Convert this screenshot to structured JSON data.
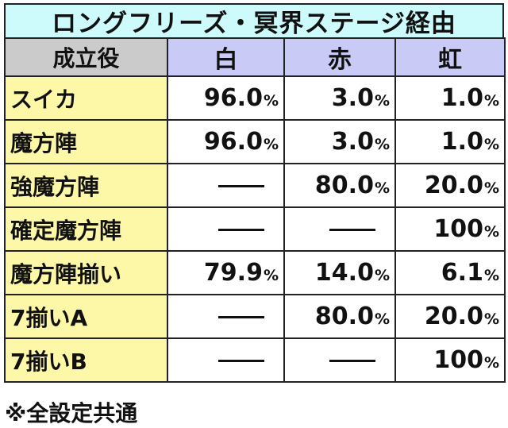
{
  "title": "ロングフリーズ・冥界ステージ経由",
  "headers": {
    "role": "成立役",
    "white": "白",
    "red": "赤",
    "rainbow": "虹"
  },
  "percent_symbol": "%",
  "rows": [
    {
      "role": "スイカ",
      "white": "96.0",
      "red": "3.0",
      "rainbow": "1.0"
    },
    {
      "role": "魔方陣",
      "white": "96.0",
      "red": "3.0",
      "rainbow": "1.0"
    },
    {
      "role": "強魔方陣",
      "white": "—",
      "red": "80.0",
      "rainbow": "20.0"
    },
    {
      "role": "確定魔方陣",
      "white": "—",
      "red": "—",
      "rainbow": "100"
    },
    {
      "role": "魔方陣揃い",
      "white": "79.9",
      "red": "14.0",
      "rainbow": "6.1"
    },
    {
      "role": "7揃いA",
      "white": "—",
      "red": "80.0",
      "rainbow": "20.0"
    },
    {
      "role": "7揃いB",
      "white": "—",
      "red": "—",
      "rainbow": "100"
    }
  ],
  "note": "※全設定共通",
  "colors": {
    "title_bg": "#cdfbfb",
    "role_header_bg": "#cbcbcb",
    "column_header_bg": "#cacaf6",
    "role_cell_bg": "#fdf7a8"
  }
}
